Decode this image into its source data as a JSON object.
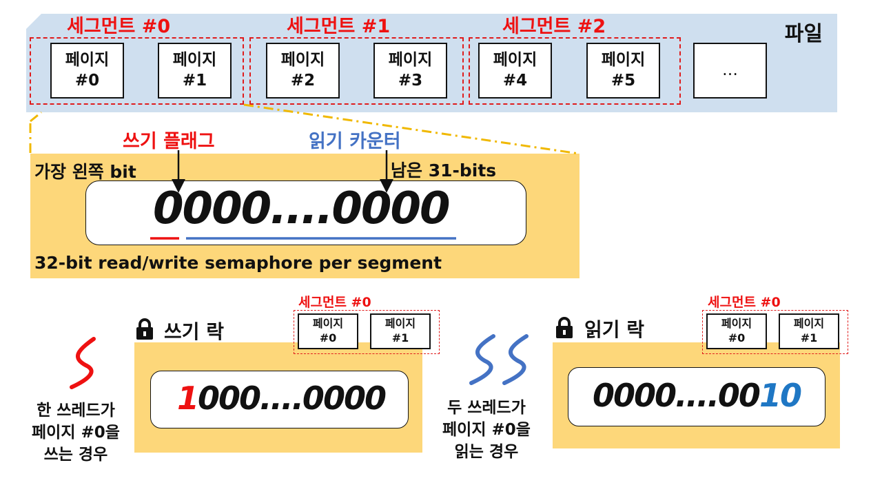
{
  "file": {
    "label": "파일",
    "segments": [
      {
        "title": "세그먼트 #0",
        "pages": [
          {
            "line1": "페이지",
            "line2": "#0"
          },
          {
            "line1": "페이지",
            "line2": "#1"
          }
        ]
      },
      {
        "title": "세그먼트 #1",
        "pages": [
          {
            "line1": "페이지",
            "line2": "#2"
          },
          {
            "line1": "페이지",
            "line2": "#3"
          }
        ]
      },
      {
        "title": "세그먼트 #2",
        "pages": [
          {
            "line1": "페이지",
            "line2": "#4"
          },
          {
            "line1": "페이지",
            "line2": "#5"
          }
        ]
      }
    ],
    "more": "…"
  },
  "semaphore": {
    "write_flag_label": "쓰기 플래그",
    "read_counter_label": "읽기 카운터",
    "leftmost_bit_label": "가장 왼쪽 bit",
    "remaining_bits_label": "남은 31-bits",
    "value": "0000....0000",
    "caption": "32-bit read/write semaphore per segment"
  },
  "write_lock": {
    "title": "쓰기 락",
    "segment_title": "세그먼트 #0",
    "pages": [
      {
        "line1": "페이지",
        "line2": "#0"
      },
      {
        "line1": "페이지",
        "line2": "#1"
      }
    ],
    "value_highlight": "1",
    "value_rest": "000....0000",
    "caption_line1": "한 쓰레드가",
    "caption_line2": "페이지 #0을",
    "caption_line3": "쓰는 경우"
  },
  "read_lock": {
    "title": "읽기 락",
    "segment_title": "세그먼트 #0",
    "pages": [
      {
        "line1": "페이지",
        "line2": "#0"
      },
      {
        "line1": "페이지",
        "line2": "#1"
      }
    ],
    "value_rest": "0000....00",
    "value_highlight": "10",
    "caption_line1": "두 쓰레드가",
    "caption_line2": "페이지 #0을",
    "caption_line3": "읽는 경우"
  },
  "colors": {
    "accent_red": "#ee1111",
    "accent_blue": "#4472c4",
    "counter_blue": "#1f77c4",
    "file_bg": "#cfdfef",
    "panel_bg": "#fdd77a",
    "zoom_line": "#f0b800"
  },
  "icons": [
    "lock-icon",
    "thread-squiggle-icon"
  ]
}
